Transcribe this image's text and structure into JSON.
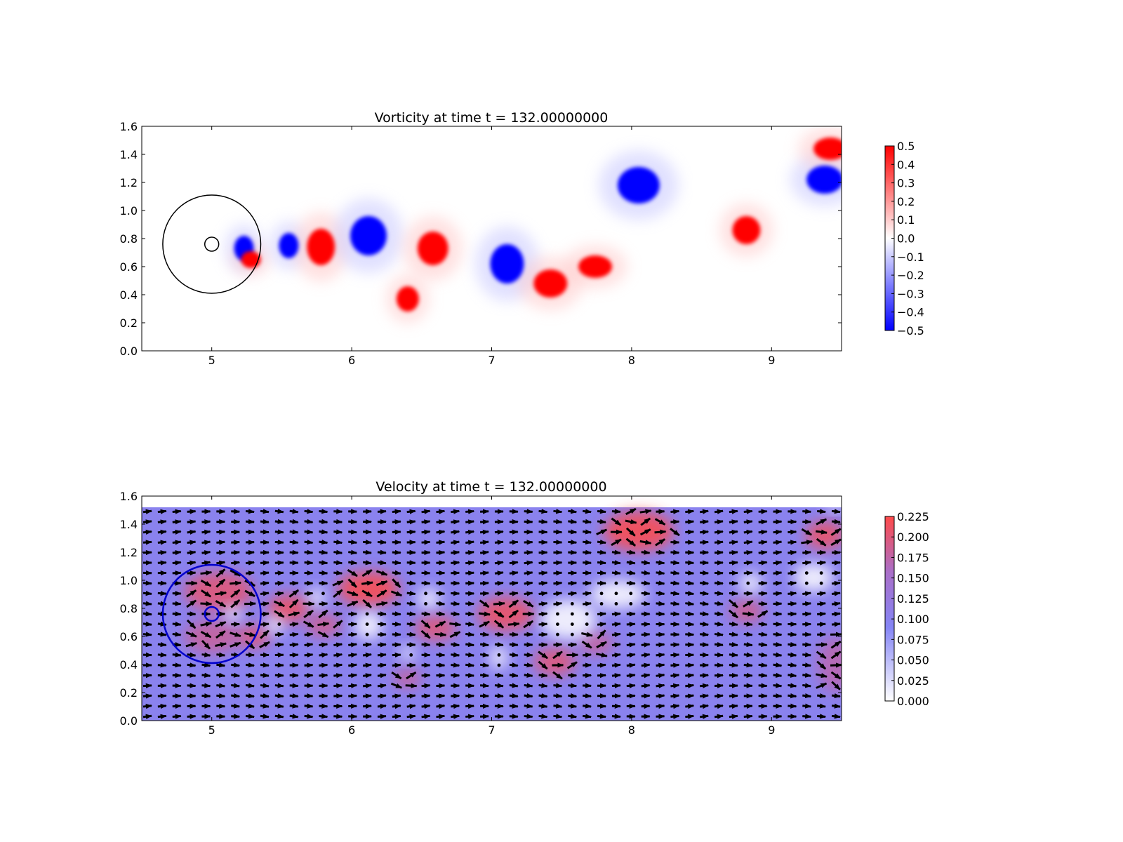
{
  "chart_data": [
    {
      "type": "heatmap",
      "title": "Vorticity at time t =   132.00000000",
      "xlabel": "",
      "ylabel": "",
      "xlim": [
        4.5,
        9.5
      ],
      "ylim": [
        0.0,
        1.6
      ],
      "xticks": [
        5,
        6,
        7,
        8,
        9
      ],
      "xticklabels": [
        "5",
        "6",
        "7",
        "8",
        "9"
      ],
      "yticks": [
        0.0,
        0.2,
        0.4,
        0.6,
        0.8,
        1.0,
        1.2,
        1.4,
        1.6
      ],
      "yticklabels": [
        "0.0",
        "0.2",
        "0.4",
        "0.6",
        "0.8",
        "1.0",
        "1.2",
        "1.4",
        "1.6"
      ],
      "colorbar": {
        "colormap": "bwr",
        "range": [
          -0.5,
          0.5
        ],
        "ticks": [
          0.5,
          0.4,
          0.3,
          0.2,
          0.1,
          0.0,
          -0.1,
          -0.2,
          -0.3,
          -0.4,
          -0.5
        ],
        "ticklabels": [
          "0.5",
          "0.4",
          "0.3",
          "0.2",
          "0.1",
          "0.0",
          "−0.1",
          "−0.2",
          "−0.3",
          "−0.4",
          "−0.5"
        ]
      },
      "circles": [
        {
          "cx": 5.0,
          "cy": 0.76,
          "r": 0.35,
          "color": "#000000"
        },
        {
          "cx": 5.0,
          "cy": 0.76,
          "r": 0.05,
          "color": "#000000"
        }
      ],
      "vortices": [
        {
          "x": 5.23,
          "y": 0.73,
          "rx": 0.07,
          "ry": 0.09,
          "value": -0.5
        },
        {
          "x": 5.28,
          "y": 0.65,
          "rx": 0.07,
          "ry": 0.06,
          "value": 0.5
        },
        {
          "x": 5.55,
          "y": 0.75,
          "rx": 0.07,
          "ry": 0.09,
          "value": -0.5
        },
        {
          "x": 5.78,
          "y": 0.74,
          "rx": 0.1,
          "ry": 0.13,
          "value": 0.5
        },
        {
          "x": 6.12,
          "y": 0.82,
          "rx": 0.13,
          "ry": 0.14,
          "value": -0.5
        },
        {
          "x": 6.58,
          "y": 0.73,
          "rx": 0.11,
          "ry": 0.12,
          "value": 0.5
        },
        {
          "x": 6.4,
          "y": 0.37,
          "rx": 0.08,
          "ry": 0.09,
          "value": 0.5
        },
        {
          "x": 7.11,
          "y": 0.62,
          "rx": 0.12,
          "ry": 0.14,
          "value": -0.5
        },
        {
          "x": 7.42,
          "y": 0.48,
          "rx": 0.12,
          "ry": 0.1,
          "value": 0.5
        },
        {
          "x": 7.74,
          "y": 0.6,
          "rx": 0.12,
          "ry": 0.08,
          "value": 0.5
        },
        {
          "x": 8.05,
          "y": 1.18,
          "rx": 0.15,
          "ry": 0.13,
          "value": -0.5
        },
        {
          "x": 8.82,
          "y": 0.86,
          "rx": 0.1,
          "ry": 0.1,
          "value": 0.5
        },
        {
          "x": 9.38,
          "y": 1.22,
          "rx": 0.13,
          "ry": 0.1,
          "value": -0.5
        },
        {
          "x": 9.42,
          "y": 1.44,
          "rx": 0.12,
          "ry": 0.08,
          "value": 0.5
        }
      ]
    },
    {
      "type": "heatmap",
      "title": "Velocity at time t =   132.00000000",
      "xlabel": "",
      "ylabel": "",
      "xlim": [
        4.5,
        9.5
      ],
      "ylim": [
        0.0,
        1.6
      ],
      "xticks": [
        5,
        6,
        7,
        8,
        9
      ],
      "xticklabels": [
        "5",
        "6",
        "7",
        "8",
        "9"
      ],
      "yticks": [
        0.0,
        0.2,
        0.4,
        0.6,
        0.8,
        1.0,
        1.2,
        1.4,
        1.6
      ],
      "yticklabels": [
        "0.0",
        "0.2",
        "0.4",
        "0.6",
        "0.8",
        "1.0",
        "1.2",
        "1.4",
        "1.6"
      ],
      "colorbar": {
        "colormap": "white-blue-red",
        "range": [
          0.0,
          0.225
        ],
        "ticks": [
          0.225,
          0.2,
          0.175,
          0.15,
          0.125,
          0.1,
          0.075,
          0.05,
          0.025,
          0.0
        ],
        "ticklabels": [
          "0.225",
          "0.200",
          "0.175",
          "0.150",
          "0.125",
          "0.100",
          "0.075",
          "0.050",
          "0.025",
          "0.000"
        ]
      },
      "field_ymax": 1.52,
      "background_speed": 0.1,
      "circles": [
        {
          "cx": 5.0,
          "cy": 0.76,
          "r": 0.35,
          "color": "#0000cc"
        },
        {
          "cx": 5.0,
          "cy": 0.76,
          "r": 0.05,
          "color": "#0000cc"
        }
      ],
      "fast_regions": [
        {
          "x": 5.05,
          "y": 0.92,
          "rx": 0.25,
          "ry": 0.14,
          "value": 0.2
        },
        {
          "x": 5.0,
          "y": 0.6,
          "rx": 0.2,
          "ry": 0.12,
          "value": 0.18
        },
        {
          "x": 5.3,
          "y": 0.6,
          "rx": 0.12,
          "ry": 0.08,
          "value": 0.2
        },
        {
          "x": 5.55,
          "y": 0.8,
          "rx": 0.15,
          "ry": 0.1,
          "value": 0.21
        },
        {
          "x": 5.8,
          "y": 0.68,
          "rx": 0.12,
          "ry": 0.08,
          "value": 0.19
        },
        {
          "x": 6.12,
          "y": 0.94,
          "rx": 0.22,
          "ry": 0.12,
          "value": 0.22
        },
        {
          "x": 6.6,
          "y": 0.66,
          "rx": 0.15,
          "ry": 0.09,
          "value": 0.2
        },
        {
          "x": 6.4,
          "y": 0.3,
          "rx": 0.1,
          "ry": 0.07,
          "value": 0.18
        },
        {
          "x": 7.1,
          "y": 0.76,
          "rx": 0.2,
          "ry": 0.12,
          "value": 0.21
        },
        {
          "x": 7.45,
          "y": 0.42,
          "rx": 0.15,
          "ry": 0.1,
          "value": 0.2
        },
        {
          "x": 7.75,
          "y": 0.55,
          "rx": 0.12,
          "ry": 0.08,
          "value": 0.18
        },
        {
          "x": 8.05,
          "y": 1.35,
          "rx": 0.25,
          "ry": 0.14,
          "value": 0.22
        },
        {
          "x": 8.82,
          "y": 0.78,
          "rx": 0.12,
          "ry": 0.08,
          "value": 0.19
        },
        {
          "x": 9.38,
          "y": 1.32,
          "rx": 0.14,
          "ry": 0.1,
          "value": 0.21
        },
        {
          "x": 9.45,
          "y": 0.4,
          "rx": 0.12,
          "ry": 0.2,
          "value": 0.17
        }
      ],
      "slow_regions": [
        {
          "x": 5.15,
          "y": 0.76,
          "rx": 0.06,
          "ry": 0.05
        },
        {
          "x": 5.45,
          "y": 0.68,
          "rx": 0.06,
          "ry": 0.06
        },
        {
          "x": 5.75,
          "y": 0.88,
          "rx": 0.06,
          "ry": 0.06
        },
        {
          "x": 6.12,
          "y": 0.68,
          "rx": 0.1,
          "ry": 0.1
        },
        {
          "x": 6.55,
          "y": 0.87,
          "rx": 0.08,
          "ry": 0.07
        },
        {
          "x": 6.4,
          "y": 0.48,
          "rx": 0.05,
          "ry": 0.05
        },
        {
          "x": 7.05,
          "y": 0.45,
          "rx": 0.06,
          "ry": 0.08
        },
        {
          "x": 7.55,
          "y": 0.72,
          "rx": 0.2,
          "ry": 0.14
        },
        {
          "x": 7.9,
          "y": 0.9,
          "rx": 0.2,
          "ry": 0.1
        },
        {
          "x": 8.85,
          "y": 0.98,
          "rx": 0.08,
          "ry": 0.07
        },
        {
          "x": 9.3,
          "y": 1.02,
          "rx": 0.14,
          "ry": 0.1
        },
        {
          "x": 9.45,
          "y": 1.52,
          "rx": 0.06,
          "ry": 0.03
        }
      ]
    }
  ]
}
